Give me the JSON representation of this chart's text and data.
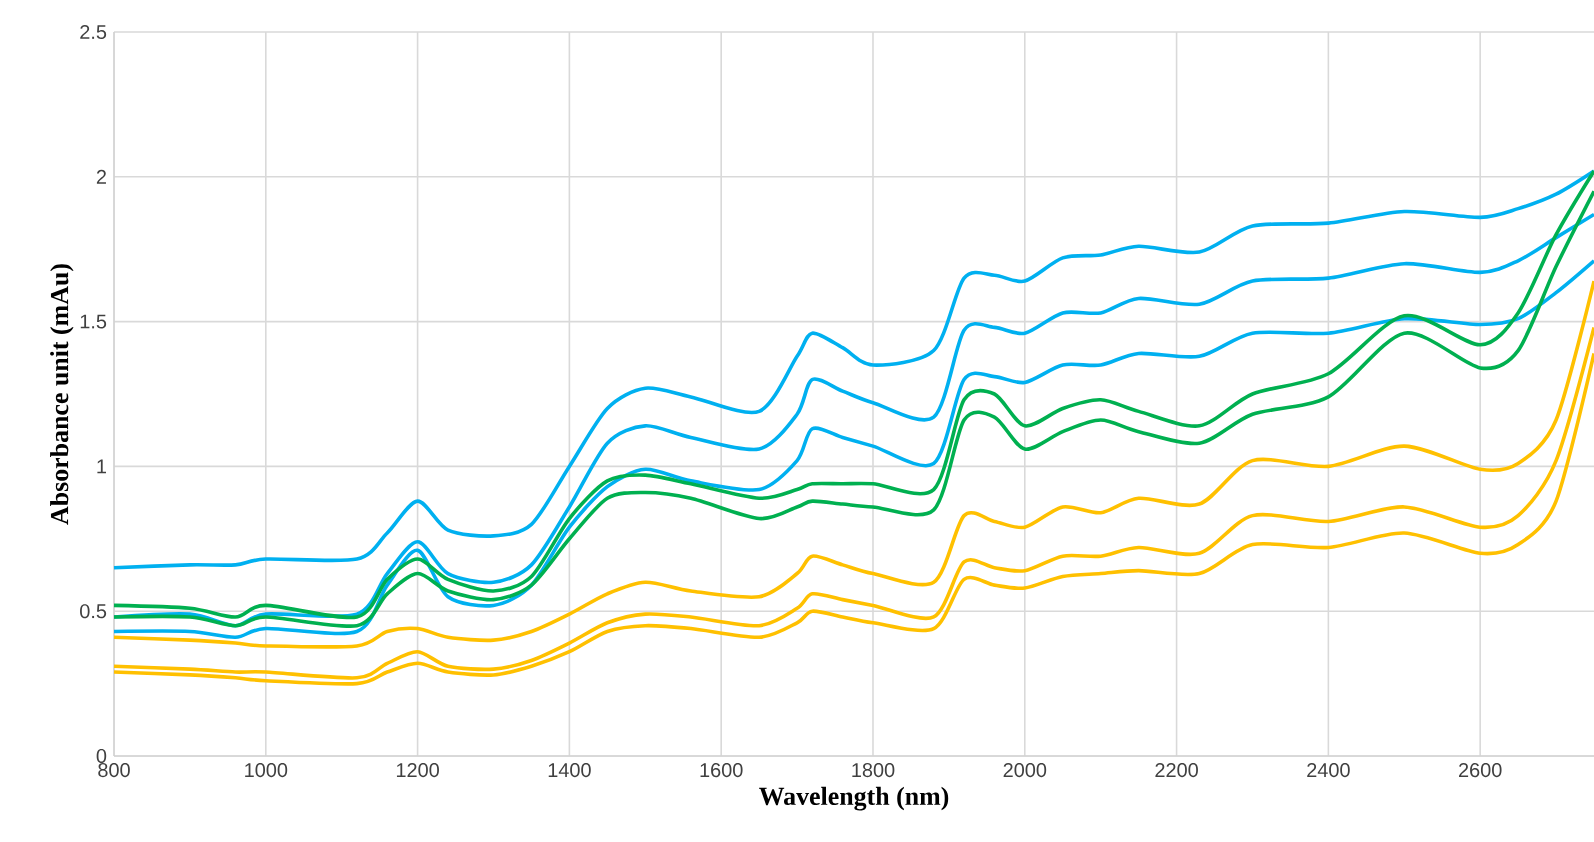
{
  "chart_data": {
    "type": "line",
    "xlabel": "Wavelength (nm)",
    "ylabel": "Absorbance unit (mAu)",
    "x": [
      800,
      900,
      960,
      1000,
      1120,
      1160,
      1200,
      1240,
      1300,
      1350,
      1400,
      1450,
      1500,
      1560,
      1650,
      1700,
      1720,
      1760,
      1800,
      1880,
      1920,
      1960,
      2000,
      2050,
      2100,
      2150,
      2230,
      2300,
      2400,
      2500,
      2600,
      2650,
      2700,
      2750
    ],
    "series": [
      {
        "color": "#00b0f0",
        "values": [
          0.65,
          0.66,
          0.66,
          0.68,
          0.68,
          0.77,
          0.88,
          0.78,
          0.76,
          0.8,
          1.0,
          1.2,
          1.27,
          1.24,
          1.19,
          1.38,
          1.46,
          1.41,
          1.35,
          1.4,
          1.65,
          1.66,
          1.64,
          1.72,
          1.73,
          1.76,
          1.74,
          1.83,
          1.84,
          1.88,
          1.86,
          1.89,
          1.94,
          2.02
        ]
      },
      {
        "color": "#00b0f0",
        "values": [
          0.48,
          0.49,
          0.45,
          0.49,
          0.49,
          0.63,
          0.74,
          0.63,
          0.6,
          0.66,
          0.86,
          1.08,
          1.14,
          1.1,
          1.06,
          1.18,
          1.3,
          1.26,
          1.22,
          1.17,
          1.47,
          1.48,
          1.46,
          1.53,
          1.53,
          1.58,
          1.56,
          1.64,
          1.65,
          1.7,
          1.67,
          1.71,
          1.79,
          1.87
        ]
      },
      {
        "color": "#00b0f0",
        "values": [
          0.43,
          0.43,
          0.41,
          0.44,
          0.43,
          0.59,
          0.71,
          0.55,
          0.52,
          0.59,
          0.79,
          0.93,
          0.99,
          0.95,
          0.92,
          1.02,
          1.13,
          1.1,
          1.07,
          1.01,
          1.3,
          1.31,
          1.29,
          1.35,
          1.35,
          1.39,
          1.38,
          1.46,
          1.46,
          1.51,
          1.49,
          1.51,
          1.6,
          1.71
        ]
      },
      {
        "color": "#00b050",
        "values": [
          0.52,
          0.51,
          0.48,
          0.52,
          0.48,
          0.61,
          0.68,
          0.61,
          0.57,
          0.62,
          0.82,
          0.95,
          0.97,
          0.94,
          0.89,
          0.92,
          0.94,
          0.94,
          0.94,
          0.92,
          1.23,
          1.25,
          1.14,
          1.2,
          1.23,
          1.19,
          1.14,
          1.25,
          1.32,
          1.52,
          1.42,
          1.53,
          1.8,
          2.02
        ]
      },
      {
        "color": "#00b050",
        "values": [
          0.48,
          0.48,
          0.45,
          0.48,
          0.45,
          0.56,
          0.63,
          0.57,
          0.54,
          0.59,
          0.75,
          0.89,
          0.91,
          0.89,
          0.82,
          0.86,
          0.88,
          0.87,
          0.86,
          0.85,
          1.16,
          1.17,
          1.06,
          1.12,
          1.16,
          1.12,
          1.08,
          1.18,
          1.24,
          1.46,
          1.34,
          1.4,
          1.69,
          1.95
        ]
      },
      {
        "color": "#ffc000",
        "values": [
          0.41,
          0.4,
          0.39,
          0.38,
          0.38,
          0.43,
          0.44,
          0.41,
          0.4,
          0.43,
          0.49,
          0.56,
          0.6,
          0.57,
          0.55,
          0.63,
          0.69,
          0.66,
          0.63,
          0.6,
          0.83,
          0.81,
          0.79,
          0.86,
          0.84,
          0.89,
          0.87,
          1.02,
          1.0,
          1.07,
          0.99,
          1.01,
          1.16,
          1.64
        ]
      },
      {
        "color": "#ffc000",
        "values": [
          0.31,
          0.3,
          0.29,
          0.29,
          0.27,
          0.32,
          0.36,
          0.31,
          0.3,
          0.33,
          0.39,
          0.46,
          0.49,
          0.48,
          0.45,
          0.51,
          0.56,
          0.54,
          0.52,
          0.48,
          0.67,
          0.65,
          0.64,
          0.69,
          0.69,
          0.72,
          0.7,
          0.83,
          0.81,
          0.86,
          0.79,
          0.83,
          1.02,
          1.48
        ]
      },
      {
        "color": "#ffc000",
        "values": [
          0.29,
          0.28,
          0.27,
          0.26,
          0.25,
          0.29,
          0.32,
          0.29,
          0.28,
          0.31,
          0.36,
          0.43,
          0.45,
          0.44,
          0.41,
          0.46,
          0.5,
          0.48,
          0.46,
          0.44,
          0.61,
          0.59,
          0.58,
          0.62,
          0.63,
          0.64,
          0.63,
          0.73,
          0.72,
          0.77,
          0.7,
          0.73,
          0.88,
          1.39
        ]
      }
    ],
    "xlim": [
      800,
      2750
    ],
    "xticks": [
      800,
      1000,
      1200,
      1400,
      1600,
      1800,
      2000,
      2200,
      2400,
      2600
    ],
    "ylim": [
      0,
      2.5
    ],
    "yticks": [
      0,
      0.5,
      1,
      1.5,
      2,
      2.5
    ],
    "grid": true
  }
}
